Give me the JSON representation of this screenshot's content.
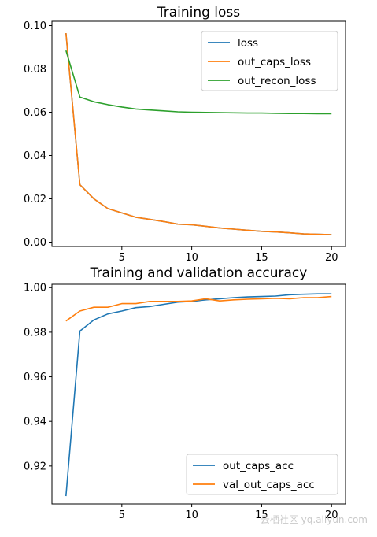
{
  "watermark": "云栖社区 yq.aliyun.com",
  "chart_data": [
    {
      "type": "line",
      "title": "Training loss",
      "xlabel": "",
      "ylabel": "",
      "xlim": [
        0.0,
        21.0
      ],
      "ylim": [
        -0.002,
        0.102
      ],
      "xticks": [
        5,
        10,
        15,
        20
      ],
      "xtick_labels": [
        "5",
        "10",
        "15",
        "20"
      ],
      "yticks": [
        0.0,
        0.02,
        0.04,
        0.06,
        0.08,
        0.1
      ],
      "ytick_labels": [
        "0.00",
        "0.02",
        "0.04",
        "0.06",
        "0.08",
        "0.10"
      ],
      "grid": false,
      "legend_position": "top-right",
      "x": [
        1,
        2,
        3,
        4,
        5,
        6,
        7,
        8,
        9,
        10,
        11,
        12,
        13,
        14,
        15,
        16,
        17,
        18,
        19,
        20
      ],
      "series": [
        {
          "name": "loss",
          "color": "#1f77b4",
          "values": [
            0.0965,
            0.0265,
            0.02,
            0.0155,
            0.0135,
            0.0115,
            0.0105,
            0.0095,
            0.0083,
            0.008,
            0.0073,
            0.0065,
            0.006,
            0.0055,
            0.005,
            0.0047,
            0.0043,
            0.0038,
            0.0036,
            0.0034
          ]
        },
        {
          "name": "out_caps_loss",
          "color": "#ff7f0e",
          "values": [
            0.0965,
            0.0265,
            0.02,
            0.0155,
            0.0135,
            0.0115,
            0.0105,
            0.0095,
            0.0083,
            0.008,
            0.0073,
            0.0065,
            0.006,
            0.0055,
            0.005,
            0.0047,
            0.0043,
            0.0038,
            0.0036,
            0.0034
          ]
        },
        {
          "name": "out_recon_loss",
          "color": "#2ca02c",
          "values": [
            0.0885,
            0.067,
            0.0648,
            0.0635,
            0.0624,
            0.0615,
            0.061,
            0.0606,
            0.0602,
            0.06,
            0.0599,
            0.0598,
            0.0597,
            0.0596,
            0.0596,
            0.0595,
            0.0594,
            0.0594,
            0.0593,
            0.0593
          ]
        }
      ]
    },
    {
      "type": "line",
      "title": "Training and validation accuracy",
      "xlabel": "",
      "ylabel": "",
      "xlim": [
        0.0,
        21.0
      ],
      "ylim": [
        0.903,
        1.0015
      ],
      "xticks": [
        5,
        10,
        15,
        20
      ],
      "xtick_labels": [
        "5",
        "10",
        "15",
        "20"
      ],
      "yticks": [
        0.92,
        0.94,
        0.96,
        0.98,
        1.0
      ],
      "ytick_labels": [
        "0.92",
        "0.94",
        "0.96",
        "0.98",
        "1.00"
      ],
      "grid": false,
      "legend_position": "bottom-right",
      "x": [
        1,
        2,
        3,
        4,
        5,
        6,
        7,
        8,
        9,
        10,
        11,
        12,
        13,
        14,
        15,
        16,
        17,
        18,
        19,
        20
      ],
      "series": [
        {
          "name": "out_caps_acc",
          "color": "#1f77b4",
          "values": [
            0.9065,
            0.9805,
            0.9855,
            0.9882,
            0.9895,
            0.991,
            0.9915,
            0.9925,
            0.9935,
            0.9938,
            0.9945,
            0.995,
            0.9955,
            0.9958,
            0.996,
            0.9962,
            0.9968,
            0.997,
            0.9972,
            0.9972
          ]
        },
        {
          "name": "val_out_caps_acc",
          "color": "#ff7f0e",
          "values": [
            0.985,
            0.9895,
            0.9912,
            0.9912,
            0.9928,
            0.9928,
            0.9938,
            0.9938,
            0.9938,
            0.994,
            0.995,
            0.994,
            0.9945,
            0.9948,
            0.995,
            0.9952,
            0.995,
            0.9955,
            0.9955,
            0.996
          ]
        }
      ]
    }
  ]
}
